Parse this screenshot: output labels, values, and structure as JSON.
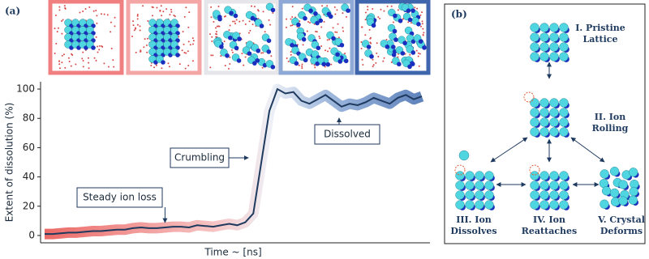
{
  "panels": [
    "(a)",
    "(b)"
  ],
  "chart_data": {
    "type": "line",
    "xlabel": "Time ~ [ns]",
    "ylabel": "Extent of dissolution (%)",
    "values": [
      1,
      1,
      1.5,
      2,
      2,
      2.5,
      3,
      3,
      3.5,
      4,
      4,
      5,
      5.5,
      5,
      5,
      5.5,
      6,
      6,
      5.5,
      7,
      6.5,
      6,
      7,
      8,
      7,
      9,
      15,
      50,
      85,
      100,
      97,
      98,
      92,
      90,
      93,
      96,
      92,
      88,
      90,
      89,
      91,
      94,
      92,
      90,
      94,
      96,
      93,
      95
    ],
    "color": "#1f3a5f",
    "ylim": [
      -5,
      105
    ],
    "yticks": [
      0,
      20,
      40,
      60,
      80,
      100
    ],
    "annotations": [
      {
        "text": "Steady ion loss",
        "index": 15
      },
      {
        "text": "Crumbling",
        "index": 26
      },
      {
        "text": "Dissolved",
        "index": 37
      }
    ]
  },
  "diagram": {
    "nodes": [
      {
        "label": [
          "I. Pristine",
          "Lattice"
        ]
      },
      {
        "label": [
          "II. Ion",
          "Rolling"
        ]
      },
      {
        "label": [
          "III. Ion",
          "Dissolves"
        ]
      },
      {
        "label": [
          "IV. Ion",
          "Reattaches"
        ]
      },
      {
        "label": [
          "V. Crystal",
          "Deforms"
        ]
      }
    ]
  }
}
